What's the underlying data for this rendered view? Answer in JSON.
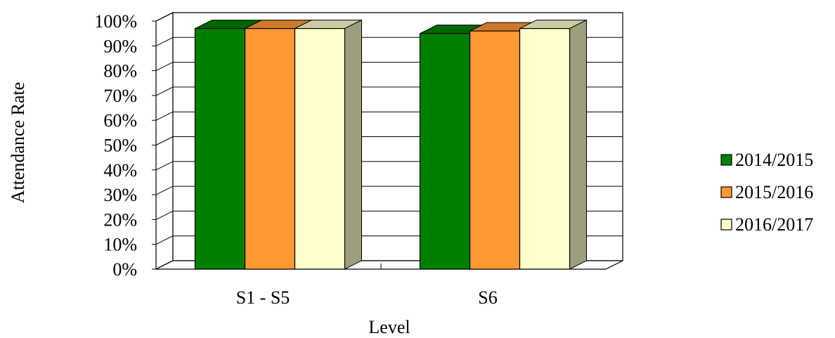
{
  "chart_data": {
    "type": "bar",
    "categories": [
      "S1 - S5",
      "S6"
    ],
    "series": [
      {
        "name": "2014/2015",
        "values": [
          97,
          95
        ],
        "color": "#008000"
      },
      {
        "name": "2015/2016",
        "values": [
          97,
          96
        ],
        "color": "#FF9933"
      },
      {
        "name": "2016/2017",
        "values": [
          97,
          97
        ],
        "color": "#FFFFCC"
      }
    ],
    "title": "",
    "xlabel": "Level",
    "ylabel": "Attendance Rate",
    "ylim": [
      0,
      100
    ],
    "yticks": [
      "0%",
      "10%",
      "20%",
      "30%",
      "40%",
      "50%",
      "60%",
      "70%",
      "80%",
      "90%",
      "100%"
    ],
    "grid": true,
    "legend": "right",
    "style": "3d-clustered-bar"
  }
}
